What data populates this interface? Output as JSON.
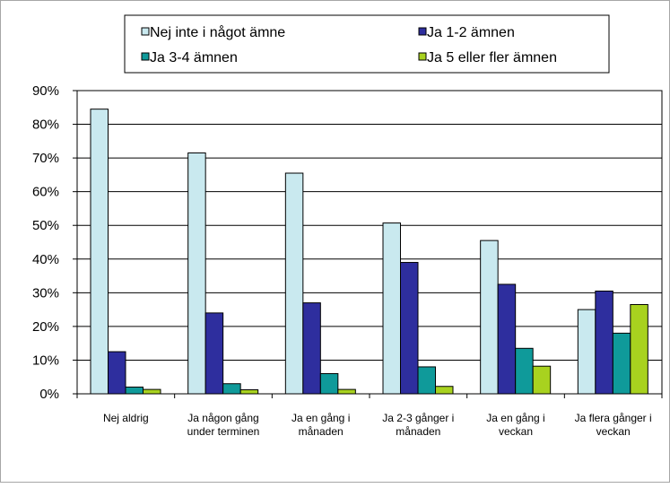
{
  "chart_data": {
    "type": "bar",
    "categories": [
      [
        "Nej aldrig"
      ],
      [
        "Ja någon gång",
        "under terminen"
      ],
      [
        "Ja en gång i",
        "månaden"
      ],
      [
        "Ja 2-3 gånger i",
        "månaden"
      ],
      [
        "Ja en gång i",
        "veckan"
      ],
      [
        "Ja flera gånger i",
        "veckan"
      ]
    ],
    "series": [
      {
        "name": "Nej inte i något ämne",
        "color": "#c9e9ef",
        "values": [
          84.5,
          71.5,
          65.5,
          50.7,
          45.5,
          25.0
        ]
      },
      {
        "name": "Ja 1-2 ämnen",
        "color": "#2e2e9e",
        "values": [
          12.5,
          24.0,
          27.0,
          39.0,
          32.5,
          30.5
        ]
      },
      {
        "name": "Ja 3-4 ämnen",
        "color": "#0f9a9a",
        "values": [
          2.0,
          3.0,
          6.0,
          8.0,
          13.5,
          18.0
        ]
      },
      {
        "name": "Ja 5 eller fler ämnen",
        "color": "#a8d21f",
        "values": [
          1.3,
          1.2,
          1.3,
          2.2,
          8.2,
          26.5
        ]
      }
    ],
    "ylim": [
      0,
      90
    ],
    "yticks": [
      "0%",
      "10%",
      "20%",
      "30%",
      "40%",
      "50%",
      "60%",
      "70%",
      "80%",
      "90%"
    ],
    "grid": true,
    "legend": "top"
  }
}
